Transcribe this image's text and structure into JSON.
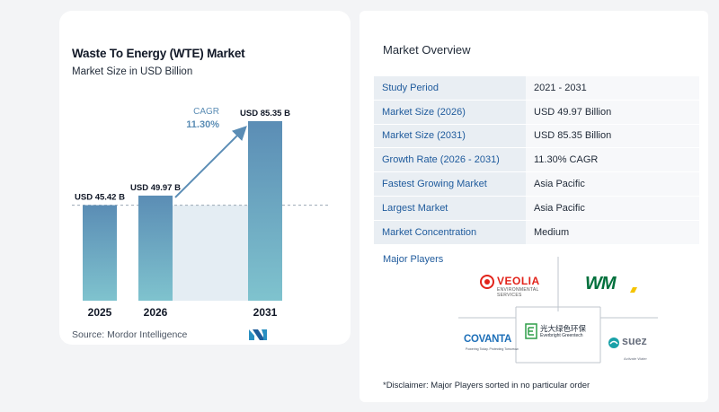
{
  "chart_data": {
    "type": "bar",
    "title": "Waste To Energy (WTE) Market",
    "subtitle": "Market Size in USD Billion",
    "categories": [
      "2025",
      "2026",
      "2031"
    ],
    "values": [
      45.42,
      49.97,
      85.35
    ],
    "value_labels": [
      "USD 45.42 B",
      "USD 49.97 B",
      "USD 85.35 B"
    ],
    "annotation": {
      "label": "CAGR",
      "value": "11.30%"
    },
    "colors": {
      "bar_top": "#5b8db5",
      "bar_bottom": "#7fc3ce",
      "arrow": "#5b8db5",
      "shade": "#e4edf3"
    }
  },
  "source": "Source:  Mordor Intelligence",
  "overview": {
    "title": "Market Overview",
    "rows": [
      {
        "label": "Study Period",
        "value": "2021 - 2031"
      },
      {
        "label": "Market Size (2026)",
        "value": "USD 49.97 Billion"
      },
      {
        "label": "Market Size (2031)",
        "value": "USD 85.35 Billion"
      },
      {
        "label": "Growth Rate (2026 - 2031)",
        "value": "11.30% CAGR"
      },
      {
        "label": "Fastest Growing Market",
        "value": "Asia Pacific"
      },
      {
        "label": "Largest Market",
        "value": "Asia Pacific"
      },
      {
        "label": "Market Concentration",
        "value": "Medium"
      }
    ]
  },
  "players": {
    "title": "Major Players",
    "veolia": {
      "name": "VEOLIA",
      "sub1": "ENVIRONMENTAL",
      "sub2": "SERVICES",
      "color": "#e2231a"
    },
    "wm": {
      "name": "WM",
      "color": "#00703c",
      "accent": "#f5c400"
    },
    "covanta": {
      "name": "COVANTA",
      "tagline": "Powering Today. Protecting Tomorrow.",
      "color": "#1d6fb8"
    },
    "everbright": {
      "name_cn": "光大绿色环保",
      "name_en": "Everbright Greentech",
      "color": "#2e9e48"
    },
    "suez": {
      "name": "suez",
      "tagline": "Activate Water",
      "color": "#19a1a8"
    }
  },
  "disclaimer": "*Disclaimer: Major Players sorted in no particular order"
}
